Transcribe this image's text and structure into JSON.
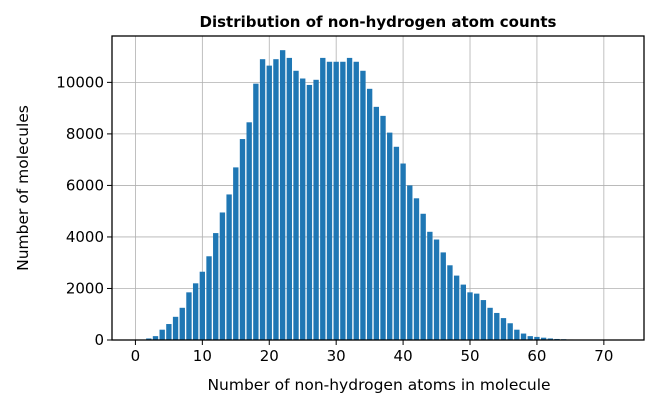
{
  "chart_data": {
    "type": "bar",
    "title": "Distribution of non-hydrogen atom counts",
    "xlabel": "Number of non-hydrogen atoms in molecule",
    "ylabel": "Number of molecules",
    "xlim": [
      -3.5,
      76
    ],
    "ylim": [
      0,
      11800
    ],
    "xticks": [
      0,
      10,
      20,
      30,
      40,
      50,
      60,
      70
    ],
    "yticks": [
      0,
      2000,
      4000,
      6000,
      8000,
      10000
    ],
    "grid": true,
    "bar_color": "#1f77b4",
    "x": [
      0,
      1,
      2,
      3,
      4,
      5,
      6,
      7,
      8,
      9,
      10,
      11,
      12,
      13,
      14,
      15,
      16,
      17,
      18,
      19,
      20,
      21,
      22,
      23,
      24,
      25,
      26,
      27,
      28,
      29,
      30,
      31,
      32,
      33,
      34,
      35,
      36,
      37,
      38,
      39,
      40,
      41,
      42,
      43,
      44,
      45,
      46,
      47,
      48,
      49,
      50,
      51,
      52,
      53,
      54,
      55,
      56,
      57,
      58,
      59,
      60,
      61,
      62,
      63,
      64,
      65,
      66,
      67,
      68,
      69,
      70,
      71,
      72
    ],
    "values": [
      0,
      10,
      60,
      150,
      400,
      620,
      900,
      1250,
      1850,
      2200,
      2650,
      3250,
      4150,
      4950,
      5650,
      6700,
      7800,
      8450,
      9950,
      10900,
      10650,
      10900,
      11250,
      10950,
      10450,
      10150,
      9900,
      10100,
      10950,
      10800,
      10800,
      10800,
      10950,
      10800,
      10450,
      9750,
      9050,
      8700,
      8050,
      7500,
      6850,
      6000,
      5500,
      4900,
      4200,
      3900,
      3400,
      2900,
      2500,
      2150,
      1850,
      1800,
      1550,
      1250,
      1050,
      850,
      650,
      400,
      250,
      150,
      120,
      90,
      60,
      40,
      30,
      20,
      10,
      5,
      3,
      2,
      1,
      0,
      0
    ]
  }
}
